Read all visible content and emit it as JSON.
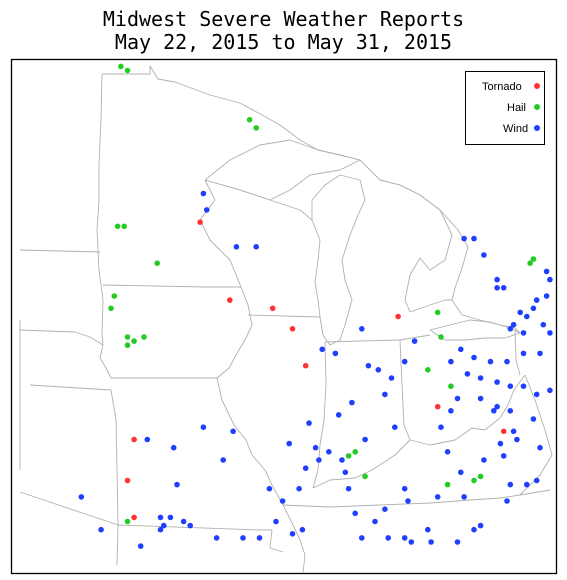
{
  "title": {
    "line1": "Midwest Severe Weather Reports",
    "line2": "May 22, 2015 to May 31, 2015"
  },
  "legend": [
    {
      "label": "Tornado",
      "color": "#ff3333"
    },
    {
      "label": "Hail",
      "color": "#22cc22"
    },
    {
      "label": "Wind",
      "color": "#1f3fff"
    }
  ],
  "region": "Midwest United States",
  "reports": {
    "tornado": [
      [
        -95.8,
        39.1
      ],
      [
        -96.0,
        38.1
      ],
      [
        -95.8,
        37.2
      ],
      [
        -92.9,
        42.5
      ],
      [
        -91.6,
        42.3
      ],
      [
        -91.0,
        41.8
      ],
      [
        -90.6,
        40.9
      ],
      [
        -87.8,
        42.1
      ],
      [
        -86.6,
        39.9
      ],
      [
        -84.6,
        39.3
      ],
      [
        -93.8,
        44.4
      ]
    ],
    "hail": [
      [
        -96.6,
        48.8
      ],
      [
        -96.0,
        48.1
      ],
      [
        -96.2,
        48.2
      ],
      [
        -92.3,
        46.9
      ],
      [
        -92.1,
        46.7
      ],
      [
        -96.1,
        44.3
      ],
      [
        -96.3,
        44.3
      ],
      [
        -95.1,
        43.4
      ],
      [
        -96.4,
        42.6
      ],
      [
        -96.5,
        42.3
      ],
      [
        -96.0,
        41.6
      ],
      [
        -95.8,
        41.5
      ],
      [
        -95.5,
        41.6
      ],
      [
        -96.0,
        41.4
      ],
      [
        -96.0,
        37.1
      ],
      [
        -89.1,
        38.8
      ],
      [
        -89.3,
        38.7
      ],
      [
        -86.6,
        42.2
      ],
      [
        -86.5,
        41.6
      ],
      [
        -86.9,
        40.8
      ],
      [
        -86.2,
        40.4
      ],
      [
        -85.5,
        38.1
      ],
      [
        -85.3,
        38.2
      ],
      [
        -83.8,
        43.4
      ],
      [
        -83.7,
        43.5
      ],
      [
        -82.1,
        42.1
      ],
      [
        -81.9,
        42.2
      ],
      [
        -86.3,
        38.0
      ],
      [
        -88.8,
        38.2
      ]
    ],
    "wind": [
      [
        -96.8,
        48.9
      ],
      [
        -93.7,
        45.1
      ],
      [
        -93.6,
        44.7
      ],
      [
        -92.7,
        43.8
      ],
      [
        -92.1,
        43.8
      ],
      [
        -85.8,
        44.0
      ],
      [
        -85.5,
        44.0
      ],
      [
        -85.2,
        43.6
      ],
      [
        -84.8,
        43.0
      ],
      [
        -84.8,
        42.8
      ],
      [
        -84.6,
        42.8
      ],
      [
        -83.3,
        43.2
      ],
      [
        -83.2,
        43.0
      ],
      [
        -83.0,
        42.9
      ],
      [
        -82.6,
        43.5
      ],
      [
        -82.7,
        43.3
      ],
      [
        -83.3,
        42.6
      ],
      [
        -83.6,
        42.5
      ],
      [
        -83.7,
        42.3
      ],
      [
        -84.1,
        42.2
      ],
      [
        -83.9,
        42.1
      ],
      [
        -84.3,
        41.9
      ],
      [
        -84.4,
        41.8
      ],
      [
        -84.0,
        41.7
      ],
      [
        -83.4,
        41.9
      ],
      [
        -83.0,
        42.1
      ],
      [
        -83.2,
        41.7
      ],
      [
        -82.9,
        41.6
      ],
      [
        -82.6,
        41.6
      ],
      [
        -82.3,
        41.5
      ],
      [
        -81.8,
        41.6
      ],
      [
        -81.5,
        41.6
      ],
      [
        -81.2,
        41.6
      ],
      [
        -81.0,
        41.4
      ],
      [
        -82.0,
        41.3
      ],
      [
        -82.5,
        41.2
      ],
      [
        -83.0,
        41.2
      ],
      [
        -83.5,
        41.2
      ],
      [
        -84.0,
        41.2
      ],
      [
        -84.5,
        41.0
      ],
      [
        -85.0,
        41.0
      ],
      [
        -85.5,
        41.1
      ],
      [
        -85.9,
        41.3
      ],
      [
        -86.2,
        41.0
      ],
      [
        -85.7,
        40.7
      ],
      [
        -85.3,
        40.6
      ],
      [
        -84.8,
        40.5
      ],
      [
        -84.4,
        40.4
      ],
      [
        -84.0,
        40.4
      ],
      [
        -83.6,
        40.2
      ],
      [
        -83.2,
        40.3
      ],
      [
        -82.8,
        40.1
      ],
      [
        -82.4,
        40.0
      ],
      [
        -81.5,
        40.7
      ],
      [
        -81.0,
        40.5
      ],
      [
        -85.3,
        40.1
      ],
      [
        -84.8,
        39.9
      ],
      [
        -84.4,
        39.8
      ],
      [
        -83.7,
        39.6
      ],
      [
        -83.0,
        39.3
      ],
      [
        -82.4,
        39.4
      ],
      [
        -84.3,
        39.3
      ],
      [
        -84.7,
        39.0
      ],
      [
        -84.2,
        39.1
      ],
      [
        -84.9,
        39.8
      ],
      [
        -86.0,
        40.1
      ],
      [
        -86.2,
        39.8
      ],
      [
        -86.5,
        39.4
      ],
      [
        -87.6,
        41.0
      ],
      [
        -87.3,
        41.5
      ],
      [
        -86.3,
        38.8
      ],
      [
        -85.9,
        38.3
      ],
      [
        -85.2,
        38.6
      ],
      [
        -84.6,
        38.7
      ],
      [
        -83.5,
        38.9
      ],
      [
        -83.6,
        38.1
      ],
      [
        -83.9,
        38.0
      ],
      [
        -84.4,
        38.0
      ],
      [
        -84.5,
        37.6
      ],
      [
        -82.7,
        37.6
      ],
      [
        -85.8,
        37.7
      ],
      [
        -86.6,
        37.7
      ],
      [
        -87.6,
        37.9
      ],
      [
        -87.5,
        37.6
      ],
      [
        -88.2,
        37.4
      ],
      [
        -88.5,
        37.1
      ],
      [
        -87.6,
        36.7
      ],
      [
        -88.9,
        36.7
      ],
      [
        -89.1,
        37.3
      ],
      [
        -89.3,
        37.9
      ],
      [
        -89.4,
        38.3
      ],
      [
        -89.5,
        38.6
      ],
      [
        -89.9,
        38.8
      ],
      [
        -90.2,
        38.6
      ],
      [
        -90.6,
        38.4
      ],
      [
        -90.3,
        38.9
      ],
      [
        -90.8,
        37.9
      ],
      [
        -91.3,
        37.6
      ],
      [
        -91.5,
        37.1
      ],
      [
        -91.0,
        36.8
      ],
      [
        -90.7,
        36.9
      ],
      [
        -92.0,
        36.7
      ],
      [
        -92.5,
        36.7
      ],
      [
        -93.3,
        36.7
      ],
      [
        -94.1,
        37.0
      ],
      [
        -94.3,
        37.1
      ],
      [
        -94.5,
        38.0
      ],
      [
        -94.7,
        37.2
      ],
      [
        -95.0,
        37.2
      ],
      [
        -94.9,
        37.0
      ],
      [
        -95.0,
        36.9
      ],
      [
        -95.6,
        36.5
      ],
      [
        -96.8,
        36.9
      ],
      [
        -97.4,
        37.7
      ],
      [
        -88.7,
        40.9
      ],
      [
        -88.4,
        40.8
      ],
      [
        -88.9,
        41.8
      ],
      [
        -88.0,
        40.6
      ],
      [
        -88.2,
        40.2
      ],
      [
        -87.9,
        39.4
      ],
      [
        -88.8,
        39.1
      ],
      [
        -89.2,
        40.0
      ],
      [
        -89.6,
        39.7
      ],
      [
        -89.7,
        41.2
      ],
      [
        -90.1,
        41.3
      ],
      [
        -90.5,
        39.5
      ],
      [
        -91.1,
        39.0
      ],
      [
        -92.8,
        39.3
      ],
      [
        -93.1,
        38.6
      ],
      [
        -94.6,
        38.9
      ],
      [
        -95.4,
        39.1
      ],
      [
        -93.7,
        39.4
      ],
      [
        -91.7,
        37.9
      ],
      [
        -88.1,
        36.7
      ],
      [
        -87.4,
        36.6
      ],
      [
        -86.9,
        36.9
      ],
      [
        -86.8,
        36.6
      ],
      [
        -85.5,
        36.9
      ],
      [
        -85.3,
        37.0
      ],
      [
        -86.0,
        36.6
      ]
    ]
  }
}
